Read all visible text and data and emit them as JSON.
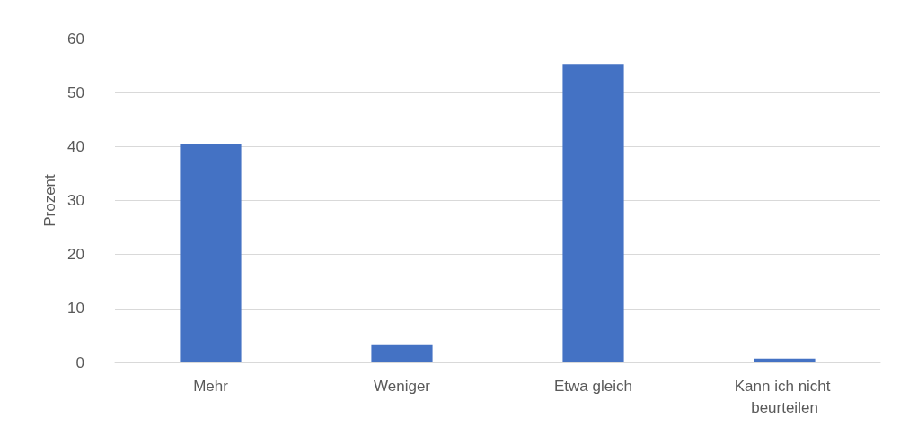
{
  "chart_data": {
    "type": "bar",
    "ylabel": "Prozent",
    "categories": [
      "Mehr",
      "Weniger",
      "Etwa gleich",
      "Kann ich nicht beurteilen"
    ],
    "values": [
      40.5,
      3.2,
      55.3,
      0.7
    ],
    "color": "#4472c4",
    "ylim": [
      0,
      60
    ],
    "yticks": [
      0,
      10,
      20,
      30,
      40,
      50,
      60
    ],
    "grid": "y"
  }
}
